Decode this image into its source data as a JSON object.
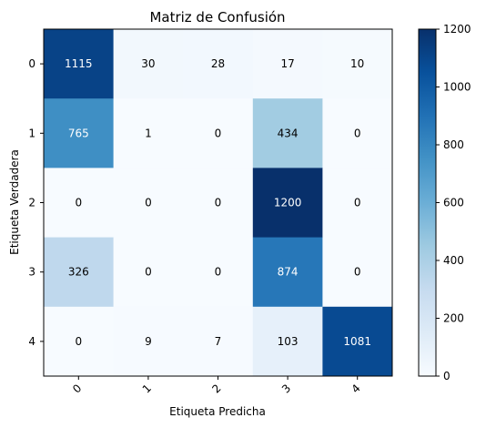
{
  "chart_data": {
    "type": "heatmap",
    "title": "Matriz de Confusión",
    "xlabel": "Etiqueta Predicha",
    "ylabel": "Etiqueta Verdadera",
    "x_categories": [
      "0",
      "1",
      "2",
      "3",
      "4"
    ],
    "y_categories": [
      "0",
      "1",
      "2",
      "3",
      "4"
    ],
    "values": [
      [
        1115,
        30,
        28,
        17,
        10
      ],
      [
        765,
        1,
        0,
        434,
        0
      ],
      [
        0,
        0,
        0,
        1200,
        0
      ],
      [
        326,
        0,
        0,
        874,
        0
      ],
      [
        0,
        9,
        7,
        103,
        1081
      ]
    ],
    "colormap": "Blues",
    "color_range": [
      0,
      1200
    ],
    "colorbar_ticks": [
      0,
      200,
      400,
      600,
      800,
      1000,
      1200
    ],
    "x_tick_rotation_deg": 45,
    "grid": false
  }
}
